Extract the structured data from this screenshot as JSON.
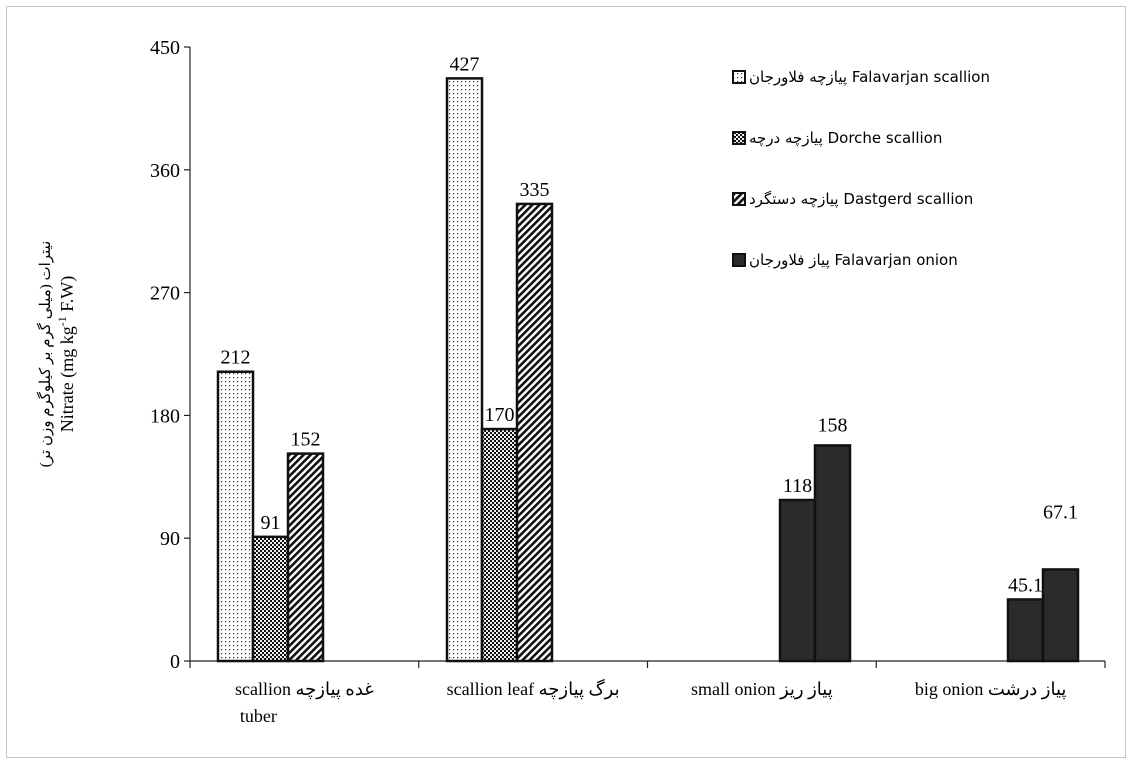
{
  "chart_data": {
    "type": "bar",
    "ylabel_fa": "نیترات (میلی گرم بر کیلوگرم وزن تر)",
    "ylabel_en_prefix": "Nitrate (mg kg",
    "ylabel_en_sup": "-1",
    "ylabel_en_suffix": " F.W)",
    "ylim": [
      0,
      450
    ],
    "yticks": [
      0,
      90,
      180,
      270,
      360,
      450
    ],
    "grid": false,
    "legend_position": "top-right",
    "categories": [
      {
        "line1": "scallion  غده پیازچه",
        "line2": "tuber"
      },
      {
        "line1": "scallion leaf  برگ پیازچه",
        "line2": ""
      },
      {
        "line1": "small onion  پیاز ریز",
        "line2": ""
      },
      {
        "line1": "big onion  پیاز درشت",
        "line2": ""
      }
    ],
    "series": [
      {
        "name": "پیازچه فلاورجان Falavarjan scallion",
        "pattern": "dots",
        "values": [
          212,
          427,
          null,
          null
        ],
        "labels": [
          "212",
          "427",
          "",
          ""
        ]
      },
      {
        "name": "پیازچه درچه Dorche scallion",
        "pattern": "checker",
        "values": [
          91,
          170,
          null,
          null
        ],
        "labels": [
          "91",
          "170",
          "",
          ""
        ]
      },
      {
        "name": "پیازچه دستگرد Dastgerd scallion",
        "pattern": "hatch",
        "values": [
          152,
          335,
          null,
          null
        ],
        "labels": [
          "152",
          "335",
          "",
          ""
        ]
      },
      {
        "name": "پیاز فلاورجان Falavarjan onion",
        "pattern": "dark",
        "values": [
          null,
          null,
          118,
          45.1
        ],
        "labels": [
          "",
          "",
          "118",
          "45.1"
        ]
      }
    ],
    "extra_series": [
      {
        "name": "",
        "pattern": "dark",
        "values": [
          null,
          null,
          158,
          67.1
        ],
        "labels": [
          "",
          "",
          "158",
          "67.1"
        ]
      }
    ]
  }
}
